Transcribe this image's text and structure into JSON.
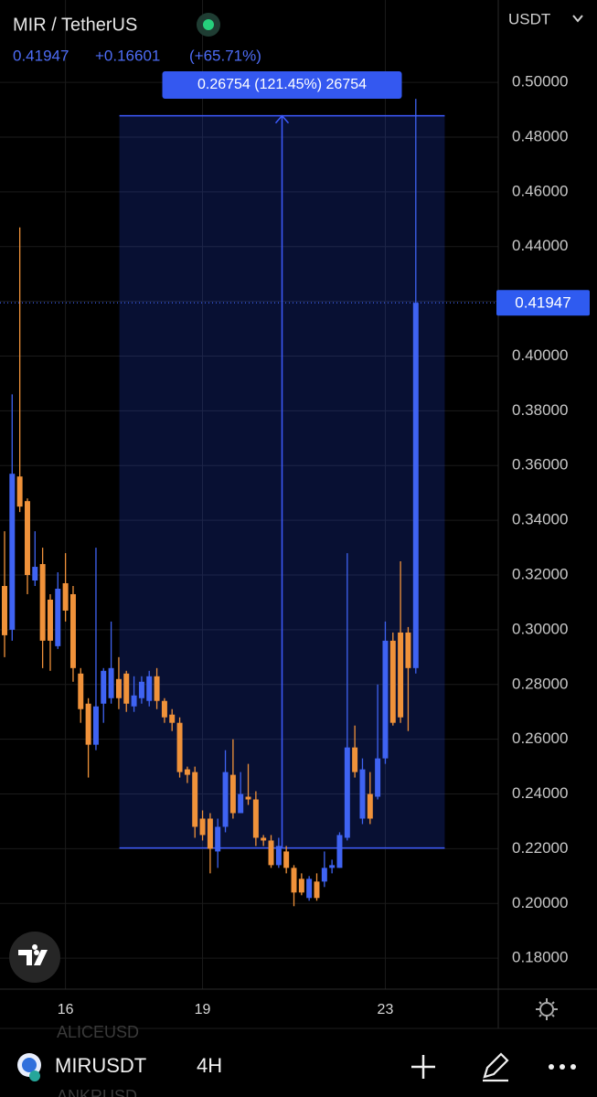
{
  "chart_data": {
    "type": "candlestick",
    "title": "MIR / TetherUS",
    "change": "+0.16601",
    "change_pct": "(+65.71%)",
    "currency": "USDT",
    "price_line": 0.41947,
    "up_color": "#3f63f2",
    "down_color": "#f0923a",
    "x": [
      14.667,
      14.833,
      15,
      15.167,
      15.333,
      15.5,
      15.667,
      15.833,
      16,
      16.167,
      16.333,
      16.5,
      16.667,
      16.833,
      17,
      17.167,
      17.333,
      17.5,
      17.667,
      17.833,
      18,
      18.167,
      18.333,
      18.5,
      18.667,
      18.833,
      19,
      19.167,
      19.333,
      19.5,
      19.667,
      19.833,
      20,
      20.167,
      20.333,
      20.5,
      20.667,
      20.833,
      21,
      21.167,
      21.333,
      21.5,
      21.667,
      21.833,
      22,
      22.167,
      22.333,
      22.5,
      22.667,
      22.833,
      23,
      23.167,
      23.333,
      23.5,
      23.667
    ],
    "open": [
      0.316,
      0.3,
      0.356,
      0.347,
      0.318,
      0.324,
      0.311,
      0.294,
      0.317,
      0.313,
      0.284,
      0.273,
      0.258,
      0.273,
      0.275,
      0.282,
      0.284,
      0.272,
      0.275,
      0.274,
      0.283,
      0.274,
      0.269,
      0.266,
      0.249,
      0.248,
      0.231,
      0.231,
      0.219,
      0.228,
      0.247,
      0.233,
      0.239,
      0.238,
      0.224,
      0.223,
      0.214,
      0.219,
      0.213,
      0.209,
      0.202,
      0.208,
      0.208,
      0.213,
      0.213,
      0.224,
      0.257,
      0.231,
      0.24,
      0.239,
      0.253,
      0.296,
      0.299,
      0.299,
      0.286
    ],
    "high": [
      0.336,
      0.386,
      0.447,
      0.348,
      0.336,
      0.33,
      0.313,
      0.321,
      0.328,
      0.316,
      0.286,
      0.275,
      0.33,
      0.286,
      0.303,
      0.29,
      0.285,
      0.283,
      0.283,
      0.285,
      0.286,
      0.275,
      0.271,
      0.268,
      0.25,
      0.25,
      0.234,
      0.233,
      0.231,
      0.256,
      0.26,
      0.248,
      0.251,
      0.241,
      0.225,
      0.225,
      0.224,
      0.221,
      0.214,
      0.211,
      0.21,
      0.211,
      0.219,
      0.216,
      0.226,
      0.328,
      0.265,
      0.253,
      0.248,
      0.28,
      0.303,
      0.299,
      0.325,
      0.301,
      0.494
    ],
    "low": [
      0.29,
      0.296,
      0.343,
      0.313,
      0.316,
      0.286,
      0.285,
      0.293,
      0.303,
      0.281,
      0.266,
      0.246,
      0.256,
      0.266,
      0.273,
      0.271,
      0.27,
      0.27,
      0.273,
      0.272,
      0.271,
      0.266,
      0.263,
      0.246,
      0.244,
      0.224,
      0.223,
      0.211,
      0.213,
      0.226,
      0.231,
      0.233,
      0.236,
      0.221,
      0.221,
      0.213,
      0.213,
      0.211,
      0.199,
      0.203,
      0.201,
      0.201,
      0.206,
      0.211,
      0.213,
      0.223,
      0.246,
      0.229,
      0.229,
      0.238,
      0.251,
      0.265,
      0.266,
      0.263,
      0.284
    ],
    "close": [
      0.298,
      0.357,
      0.345,
      0.32,
      0.323,
      0.296,
      0.296,
      0.315,
      0.307,
      0.286,
      0.271,
      0.258,
      0.272,
      0.285,
      0.286,
      0.275,
      0.273,
      0.276,
      0.281,
      0.283,
      0.274,
      0.268,
      0.266,
      0.248,
      0.247,
      0.228,
      0.225,
      0.22,
      0.228,
      0.248,
      0.233,
      0.24,
      0.238,
      0.224,
      0.223,
      0.214,
      0.221,
      0.213,
      0.204,
      0.204,
      0.209,
      0.202,
      0.213,
      0.214,
      0.225,
      0.257,
      0.248,
      0.249,
      0.231,
      0.253,
      0.296,
      0.266,
      0.268,
      0.286,
      0.41947
    ],
    "measure": {
      "from": 0.22027,
      "to": 0.48781,
      "x_from": 17.18,
      "x_to": 24.3,
      "label": "0.26754 (121.45%) 26754"
    },
    "xlim": [
      14.567,
      25.472
    ],
    "xticks": [
      16,
      19,
      23
    ],
    "ylim": [
      0.1687,
      0.5301
    ],
    "yticks": [
      {
        "value": 0.18,
        "label": "0.18000"
      },
      {
        "value": 0.2,
        "label": "0.20000"
      },
      {
        "value": 0.22,
        "label": "0.22000"
      },
      {
        "value": 0.24,
        "label": "0.24000"
      },
      {
        "value": 0.26,
        "label": "0.26000"
      },
      {
        "value": 0.28,
        "label": "0.28000"
      },
      {
        "value": 0.3,
        "label": "0.30000"
      },
      {
        "value": 0.32,
        "label": "0.32000"
      },
      {
        "value": 0.34,
        "label": "0.34000"
      },
      {
        "value": 0.36,
        "label": "0.36000"
      },
      {
        "value": 0.38,
        "label": "0.38000"
      },
      {
        "value": 0.4,
        "label": "0.40000"
      },
      {
        "value": 0.42,
        "label": "0.42000"
      },
      {
        "value": 0.44,
        "label": "0.44000"
      },
      {
        "value": 0.46,
        "label": "0.46000"
      },
      {
        "value": 0.48,
        "label": "0.48000"
      },
      {
        "value": 0.5,
        "label": "0.50000"
      }
    ],
    "grid": true
  },
  "toolbar": {
    "symbol": "MIRUSDT",
    "interval": "4H",
    "watchlist": [
      "ALICEUSD",
      "ANKRUSD"
    ]
  }
}
